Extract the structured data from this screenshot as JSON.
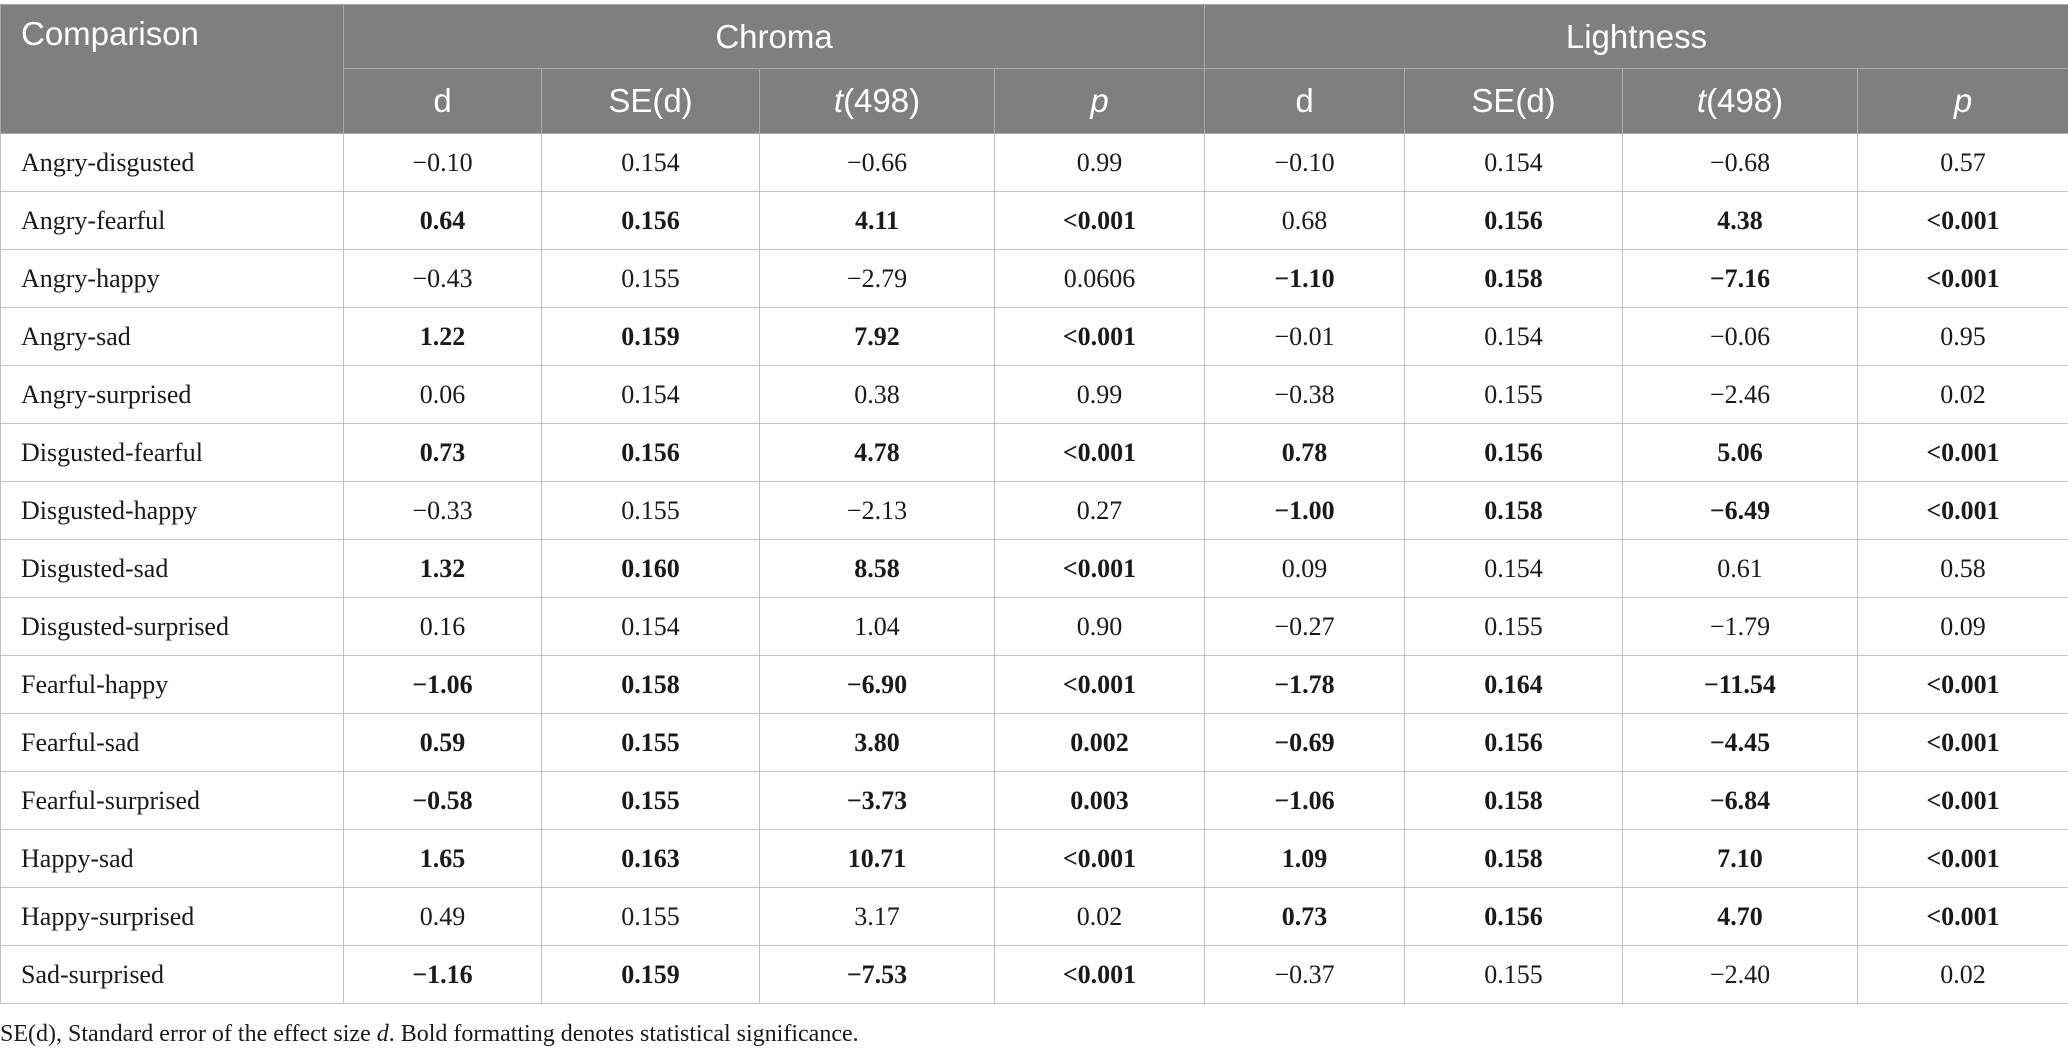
{
  "header": {
    "comparison": "Comparison",
    "groups": [
      "Chroma",
      "Lightness"
    ],
    "sub": {
      "d": "d",
      "se": "SE(d)",
      "t_italic": "t",
      "t_rest": "(498)",
      "p": "p"
    }
  },
  "rows": [
    {
      "label": "Angry-disgusted",
      "chroma": [
        "−0.10",
        "0.154",
        "−0.66",
        "0.99"
      ],
      "chroma_bold": [
        false,
        false,
        false,
        false
      ],
      "light": [
        "−0.10",
        "0.154",
        "−0.68",
        "0.57"
      ],
      "light_bold": [
        false,
        false,
        false,
        false
      ]
    },
    {
      "label": "Angry-fearful",
      "chroma": [
        "0.64",
        "0.156",
        "4.11",
        "<0.001"
      ],
      "chroma_bold": [
        true,
        true,
        true,
        true
      ],
      "light": [
        "0.68",
        "0.156",
        "4.38",
        "<0.001"
      ],
      "light_bold": [
        false,
        true,
        true,
        true
      ]
    },
    {
      "label": "Angry-happy",
      "chroma": [
        "−0.43",
        "0.155",
        "−2.79",
        "0.0606"
      ],
      "chroma_bold": [
        false,
        false,
        false,
        false
      ],
      "light": [
        "−1.10",
        "0.158",
        "−7.16",
        "<0.001"
      ],
      "light_bold": [
        true,
        true,
        true,
        true
      ]
    },
    {
      "label": "Angry-sad",
      "chroma": [
        "1.22",
        "0.159",
        "7.92",
        "<0.001"
      ],
      "chroma_bold": [
        true,
        true,
        true,
        true
      ],
      "light": [
        "−0.01",
        "0.154",
        "−0.06",
        "0.95"
      ],
      "light_bold": [
        false,
        false,
        false,
        false
      ]
    },
    {
      "label": "Angry-surprised",
      "chroma": [
        "0.06",
        "0.154",
        "0.38",
        "0.99"
      ],
      "chroma_bold": [
        false,
        false,
        false,
        false
      ],
      "light": [
        "−0.38",
        "0.155",
        "−2.46",
        "0.02"
      ],
      "light_bold": [
        false,
        false,
        false,
        false
      ]
    },
    {
      "label": "Disgusted-fearful",
      "chroma": [
        "0.73",
        "0.156",
        "4.78",
        "<0.001"
      ],
      "chroma_bold": [
        true,
        true,
        true,
        true
      ],
      "light": [
        "0.78",
        "0.156",
        "5.06",
        "<0.001"
      ],
      "light_bold": [
        true,
        true,
        true,
        true
      ]
    },
    {
      "label": "Disgusted-happy",
      "chroma": [
        "−0.33",
        "0.155",
        "−2.13",
        "0.27"
      ],
      "chroma_bold": [
        false,
        false,
        false,
        false
      ],
      "light": [
        "−1.00",
        "0.158",
        "−6.49",
        "<0.001"
      ],
      "light_bold": [
        true,
        true,
        true,
        true
      ]
    },
    {
      "label": "Disgusted-sad",
      "chroma": [
        "1.32",
        "0.160",
        "8.58",
        "<0.001"
      ],
      "chroma_bold": [
        true,
        true,
        true,
        true
      ],
      "light": [
        "0.09",
        "0.154",
        "0.61",
        "0.58"
      ],
      "light_bold": [
        false,
        false,
        false,
        false
      ]
    },
    {
      "label": "Disgusted-surprised",
      "chroma": [
        "0.16",
        "0.154",
        "1.04",
        "0.90"
      ],
      "chroma_bold": [
        false,
        false,
        false,
        false
      ],
      "light": [
        "−0.27",
        "0.155",
        "−1.79",
        "0.09"
      ],
      "light_bold": [
        false,
        false,
        false,
        false
      ]
    },
    {
      "label": "Fearful-happy",
      "chroma": [
        "−1.06",
        "0.158",
        "−6.90",
        "<0.001"
      ],
      "chroma_bold": [
        true,
        true,
        true,
        true
      ],
      "light": [
        "−1.78",
        "0.164",
        "−11.54",
        "<0.001"
      ],
      "light_bold": [
        true,
        true,
        true,
        true
      ]
    },
    {
      "label": "Fearful-sad",
      "chroma": [
        "0.59",
        "0.155",
        "3.80",
        "0.002"
      ],
      "chroma_bold": [
        true,
        true,
        true,
        true
      ],
      "light": [
        "−0.69",
        "0.156",
        "−4.45",
        "<0.001"
      ],
      "light_bold": [
        true,
        true,
        true,
        true
      ]
    },
    {
      "label": "Fearful-surprised",
      "chroma": [
        "−0.58",
        "0.155",
        "−3.73",
        "0.003"
      ],
      "chroma_bold": [
        true,
        true,
        true,
        true
      ],
      "light": [
        "−1.06",
        "0.158",
        "−6.84",
        "<0.001"
      ],
      "light_bold": [
        true,
        true,
        true,
        true
      ]
    },
    {
      "label": "Happy-sad",
      "chroma": [
        "1.65",
        "0.163",
        "10.71",
        "<0.001"
      ],
      "chroma_bold": [
        true,
        true,
        true,
        true
      ],
      "light": [
        "1.09",
        "0.158",
        "7.10",
        "<0.001"
      ],
      "light_bold": [
        true,
        true,
        true,
        true
      ]
    },
    {
      "label": "Happy-surprised",
      "chroma": [
        "0.49",
        "0.155",
        "3.17",
        "0.02"
      ],
      "chroma_bold": [
        false,
        false,
        false,
        false
      ],
      "light": [
        "0.73",
        "0.156",
        "4.70",
        "<0.001"
      ],
      "light_bold": [
        true,
        true,
        true,
        true
      ]
    },
    {
      "label": "Sad-surprised",
      "chroma": [
        "−1.16",
        "0.159",
        "−7.53",
        "<0.001"
      ],
      "chroma_bold": [
        true,
        true,
        true,
        true
      ],
      "light": [
        "−0.37",
        "0.155",
        "−2.40",
        "0.02"
      ],
      "light_bold": [
        false,
        false,
        false,
        false
      ]
    }
  ],
  "footnote": {
    "part1": "SE(d), Standard error of the effect size ",
    "italic": "d",
    "part2": ". Bold formatting denotes statistical significance."
  },
  "colors": {
    "header_bg": "#7e7f7e",
    "header_text": "#ffffff",
    "grid": "#c4c4c4"
  }
}
